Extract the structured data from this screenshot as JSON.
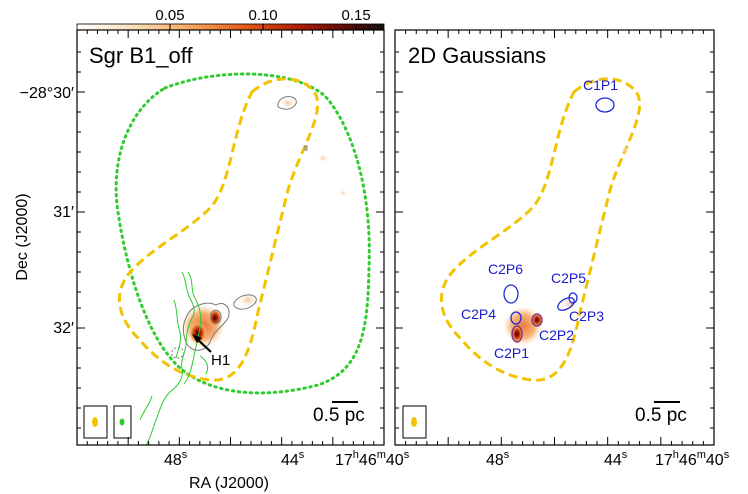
{
  "colorbar": {
    "ticks": [
      "0.05",
      "0.10",
      "0.15"
    ],
    "tick_values": [
      0.05,
      0.1,
      0.15
    ],
    "range": [
      0.0,
      0.165
    ],
    "colormap": [
      "#ffffff",
      "#fbe0bd",
      "#f6a35a",
      "#e65a14",
      "#b01e06",
      "#5a0a08",
      "#111111"
    ]
  },
  "left_panel": {
    "title": "Sgr B1_off",
    "source_label": "H1",
    "scalebar": "0.5 pc"
  },
  "right_panel": {
    "title": "2D Gaussians",
    "scalebar": "0.5 pc",
    "components": [
      "C1P1",
      "C2P6",
      "C2P5",
      "C2P4",
      "C2P3",
      "C2P2",
      "C2P1"
    ]
  },
  "axes": {
    "ylabel": "Dec (J2000)",
    "xlabel": "RA (J2000)",
    "yticks": [
      "−28°30′",
      "31′",
      "32′"
    ],
    "xticks_left": [
      "48",
      "44",
      "17",
      "46",
      "40"
    ],
    "xticks_right": [
      "48",
      "44",
      "17",
      "46",
      "40"
    ],
    "x_superscripts": [
      "s",
      "h",
      "m"
    ]
  },
  "colors": {
    "yellow_contour": "#f2c300",
    "green_contour": "#2ecc2e",
    "label_blue": "#1a1acc",
    "gaussian_blue": "#1f2bd6"
  }
}
